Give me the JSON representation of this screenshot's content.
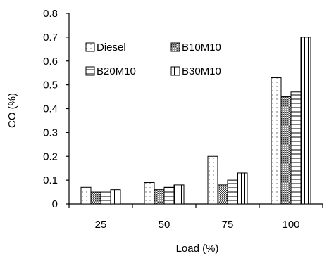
{
  "chart_data": {
    "type": "bar",
    "title": "",
    "xlabel": "Load (%)",
    "ylabel": "CO (%)",
    "categories": [
      "25",
      "50",
      "75",
      "100"
    ],
    "ylim": [
      0,
      0.8
    ],
    "yticks": [
      "0",
      "0.1",
      "0.2",
      "0.3",
      "0.4",
      "0.5",
      "0.6",
      "0.7",
      "0.8"
    ],
    "grid": false,
    "legend_position": "top-left",
    "series": [
      {
        "name": "Diesel",
        "pattern": "dotted",
        "values": [
          0.07,
          0.09,
          0.2,
          0.53
        ]
      },
      {
        "name": "B10M10",
        "pattern": "checkered",
        "values": [
          0.05,
          0.06,
          0.08,
          0.45
        ]
      },
      {
        "name": "B20M10",
        "pattern": "horizontal-lines",
        "values": [
          0.05,
          0.07,
          0.1,
          0.47
        ]
      },
      {
        "name": "B30M10",
        "pattern": "vertical-lines",
        "values": [
          0.06,
          0.08,
          0.13,
          0.7
        ]
      }
    ],
    "colors": {
      "bar_stroke": "#000000",
      "bar_fill": "#ffffff",
      "axis": "#000000"
    }
  }
}
